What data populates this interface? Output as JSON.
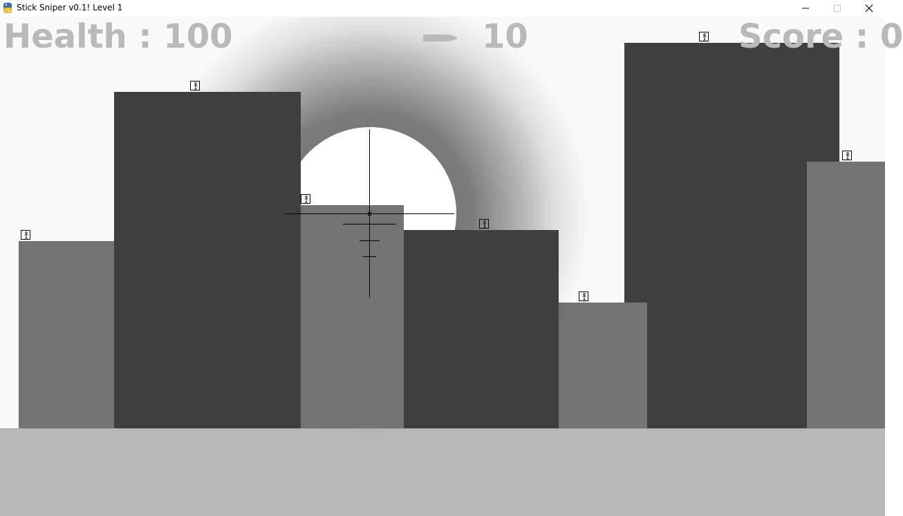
{
  "window": {
    "title": "Stick Sniper v0.1! Level 1",
    "icon": "python-icon",
    "controls": [
      "minimize-icon",
      "maximize-icon",
      "close-icon"
    ]
  },
  "hud": {
    "health_label": "Health : 100",
    "ammo_count": "10",
    "ammo_icon": "bullet-icon",
    "score_label": "Score : 0"
  },
  "colors": {
    "sky": "#f9f9f9",
    "building_dark": "#3f3f3f",
    "building_mid": "#737373",
    "ground": "#b8b8b8",
    "hud_text": "#b9b9b9",
    "scope_dark": "#2b2b2b"
  },
  "scene": {
    "enemies": [
      "stick-figure-icon",
      "stick-figure-icon",
      "stick-figure-icon",
      "stick-figure-icon",
      "stick-figure-icon",
      "stick-figure-icon",
      "stick-figure-icon"
    ]
  }
}
